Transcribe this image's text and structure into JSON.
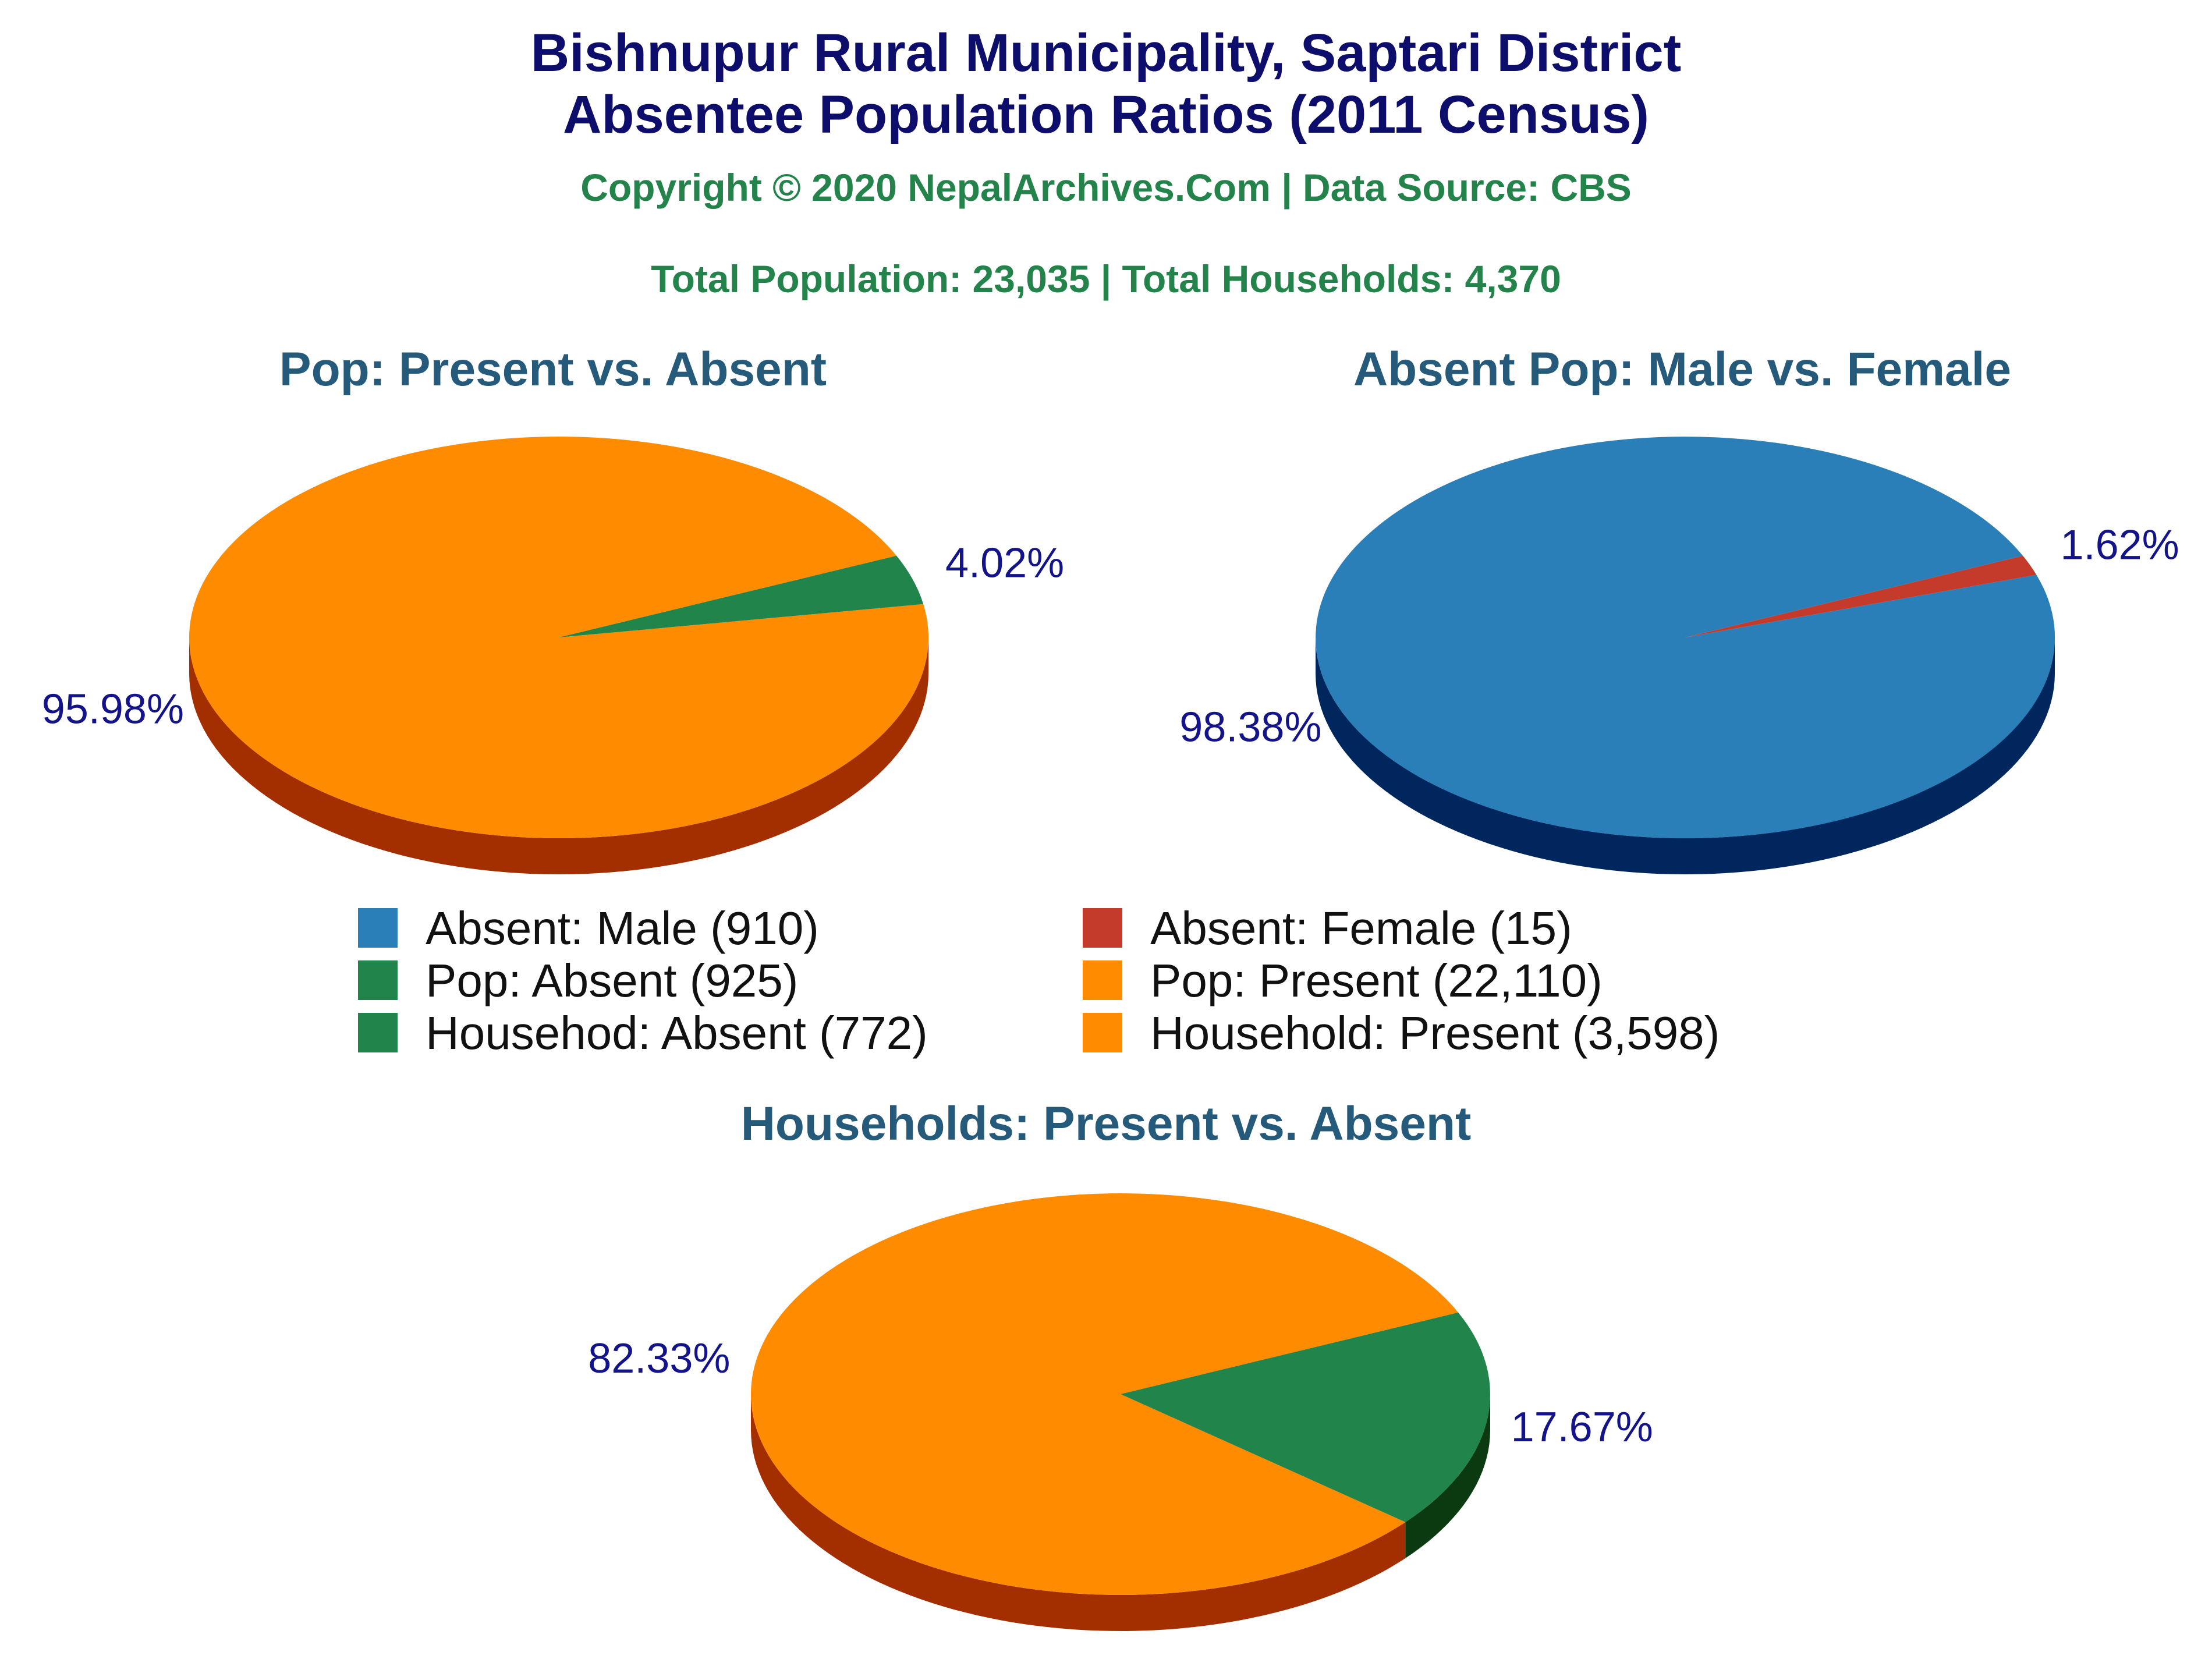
{
  "header": {
    "title_line1": "Bishnupur Rural Municipality, Saptari District",
    "title_line2": "Absentee Population Ratios (2011 Census)",
    "copyright": "Copyright © 2020 NepalArchives.Com | Data Source: CBS",
    "totals": "Total Population: 23,035 | Total Households: 4,370"
  },
  "chart_data": [
    {
      "type": "pie",
      "title": "Pop: Present vs. Absent",
      "slices": [
        {
          "label": "Pop: Present",
          "value": 22110,
          "percent_label": "95.98%",
          "color": "#ff8c00",
          "side_color": "#a32e00"
        },
        {
          "label": "Pop: Absent",
          "value": 925,
          "percent_label": "4.02%",
          "color": "#21844b",
          "side_color": "#0b3a10"
        }
      ]
    },
    {
      "type": "pie",
      "title": "Absent Pop: Male vs. Female",
      "slices": [
        {
          "label": "Absent: Male",
          "value": 910,
          "percent_label": "98.38%",
          "color": "#2a7fb8",
          "side_color": "#00265e"
        },
        {
          "label": "Absent: Female",
          "value": 15,
          "percent_label": "1.62%",
          "color": "#c43b2b",
          "side_color": "#6e1010"
        }
      ]
    },
    {
      "type": "pie",
      "title": "Households: Present vs. Absent",
      "slices": [
        {
          "label": "Household: Present",
          "value": 3598,
          "percent_label": "82.33%",
          "color": "#ff8c00",
          "side_color": "#a32e00"
        },
        {
          "label": "Househod: Absent",
          "value": 772,
          "percent_label": "17.67%",
          "color": "#21844b",
          "side_color": "#0b3a10"
        }
      ]
    }
  ],
  "legend": [
    {
      "label": "Absent: Male (910)",
      "color": "#2a7fb8"
    },
    {
      "label": "Absent: Female (15)",
      "color": "#c43b2b"
    },
    {
      "label": "Pop: Absent (925)",
      "color": "#21844b"
    },
    {
      "label": "Pop: Present (22,110)",
      "color": "#ff8c00"
    },
    {
      "label": "Househod: Absent (772)",
      "color": "#21844b"
    },
    {
      "label": "Household: Present (3,598)",
      "color": "#ff8c00"
    }
  ]
}
